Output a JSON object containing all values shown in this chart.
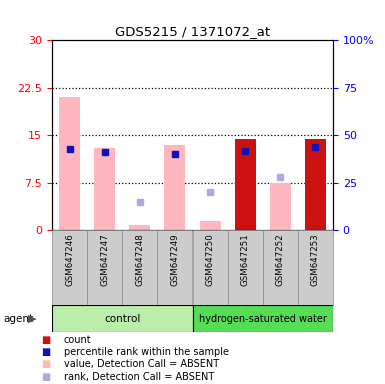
{
  "title": "GDS5215 / 1371072_at",
  "samples": [
    "GSM647246",
    "GSM647247",
    "GSM647248",
    "GSM647249",
    "GSM647250",
    "GSM647251",
    "GSM647252",
    "GSM647253"
  ],
  "ylim_left": [
    0,
    30
  ],
  "ylim_right": [
    0,
    100
  ],
  "yticks_left": [
    0,
    7.5,
    15,
    22.5,
    30
  ],
  "ytick_labels_left": [
    "0",
    "7.5",
    "15",
    "22.5",
    "30"
  ],
  "ytick_labels_right": [
    "0",
    "25",
    "50",
    "75",
    "100%"
  ],
  "pink_bar_values": [
    21.0,
    13.0,
    0.8,
    13.5,
    1.5,
    14.5,
    7.5,
    14.5
  ],
  "red_bar_values": [
    0.0,
    0.0,
    0.0,
    0.0,
    0.0,
    14.5,
    0.0,
    14.5
  ],
  "blue_sq_pct": [
    43.0,
    41.0,
    0.0,
    40.0,
    0.0,
    42.0,
    0.0,
    44.0
  ],
  "lblue_sq_pct": [
    0.0,
    0.0,
    15.0,
    0.0,
    20.0,
    0.0,
    28.0,
    0.0
  ],
  "pink_color": "#ffb6be",
  "red_color": "#cc1111",
  "blue_color": "#1111bb",
  "lblue_color": "#aaaadd",
  "ctrl_color": "#bbeeaa",
  "h2_color": "#55dd55",
  "legend_items": [
    {
      "color": "#cc1111",
      "label": "count"
    },
    {
      "color": "#1111bb",
      "label": "percentile rank within the sample"
    },
    {
      "color": "#ffb6be",
      "label": "value, Detection Call = ABSENT"
    },
    {
      "color": "#aaaadd",
      "label": "rank, Detection Call = ABSENT"
    }
  ]
}
